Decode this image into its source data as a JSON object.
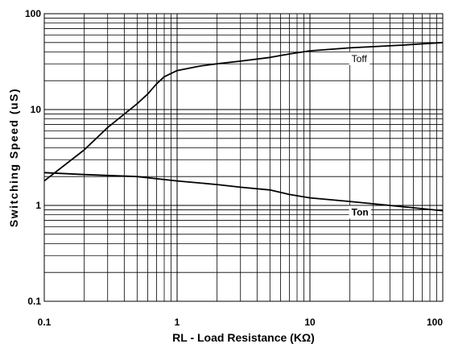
{
  "chart_data": {
    "type": "line",
    "title": "",
    "xlabel": "RL - Load Resistance (KΩ)",
    "ylabel": "Switching Speed (uS)",
    "x_scale": "log",
    "y_scale": "log",
    "xlim": [
      0.1,
      100
    ],
    "ylim": [
      0.1,
      100
    ],
    "grid": true,
    "x_tick_labels": [
      "0.1",
      "1",
      "10",
      "100"
    ],
    "y_tick_labels": [
      "100",
      "10",
      "1",
      "0.1"
    ],
    "series": [
      {
        "name": "Toff",
        "x": [
          0.1,
          0.2,
          0.3,
          0.5,
          0.6,
          0.7,
          0.8,
          1,
          1.5,
          2,
          3,
          5,
          7,
          10,
          20,
          50,
          100
        ],
        "y": [
          1.8,
          3.8,
          6.5,
          11.5,
          14.5,
          18.5,
          22,
          25.5,
          28.5,
          30,
          32,
          35,
          38,
          41,
          44,
          47,
          50
        ]
      },
      {
        "name": "Ton",
        "x": [
          0.1,
          0.2,
          0.5,
          1,
          2,
          3,
          5,
          7,
          10,
          20,
          50,
          100
        ],
        "y": [
          2.2,
          2.1,
          2.0,
          1.8,
          1.65,
          1.55,
          1.45,
          1.3,
          1.2,
          1.1,
          0.97,
          0.88
        ]
      }
    ],
    "annotations": [
      {
        "text": "Toff",
        "series": "Toff",
        "x": 20,
        "y": 34,
        "bold": false
      },
      {
        "text": "Ton",
        "series": "Ton",
        "x": 20,
        "y": 0.85,
        "bold": true
      }
    ]
  }
}
